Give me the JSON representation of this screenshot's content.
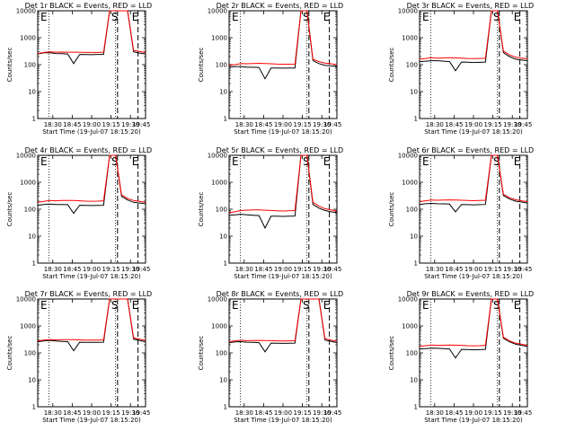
{
  "chart_data": [
    {
      "type": "line",
      "title": "Det 1r BLACK = Events, RED = LLD",
      "xlabel": "Start Time (19-Jul-07 18:15:20)",
      "ylabel": "Counts/sec",
      "x_tick_labels": [
        "18:30",
        "18:45",
        "19:00",
        "19:15",
        "19:30",
        "19:45"
      ],
      "y_tick_labels": [
        "1",
        "10",
        "100",
        "1000",
        "10000"
      ],
      "ylim": [
        1,
        10000
      ],
      "yscale": "log",
      "markers": [
        {
          "label": "E",
          "position": "left-edge"
        },
        {
          "label": "S",
          "position": "first-dashed-line"
        },
        {
          "label": "E",
          "position": "second-dashed-line"
        }
      ],
      "series": [
        {
          "name": "Events",
          "color": "#000000",
          "values": [
            250,
            275,
            280,
            260,
            255,
            250,
            110,
            240,
            238,
            235,
            240,
            240,
            10000,
            10000,
            10000,
            10000,
            300,
            270,
            250
          ]
        },
        {
          "name": "LLD",
          "color": "#ff0000",
          "values": [
            260,
            285,
            300,
            290,
            292,
            290,
            290,
            290,
            285,
            283,
            285,
            290,
            12000,
            12000,
            12000,
            12000,
            340,
            310,
            280
          ]
        }
      ],
      "levels": {
        "pre": 250,
        "post": 270
      }
    },
    {
      "type": "line",
      "title": "Det 2r BLACK = Events, RED = LLD",
      "xlabel": "Start Time (19-Jul-07 18:15:20)",
      "ylabel": "Counts/sec",
      "x_tick_labels": [
        "18:30",
        "18:45",
        "19:00",
        "19:15",
        "19:30",
        "19:45"
      ],
      "y_tick_labels": [
        "1",
        "10",
        "100",
        "1000",
        "10000"
      ],
      "ylim": [
        1,
        10000
      ],
      "yscale": "log",
      "markers": [
        {
          "label": "E",
          "position": "left-edge"
        },
        {
          "label": "S",
          "position": "first-dashed-line"
        },
        {
          "label": "E",
          "position": "second-dashed-line"
        }
      ],
      "series": [
        {
          "name": "Events",
          "color": "#000000",
          "values": [
            80,
            85,
            85,
            80,
            80,
            78,
            30,
            75,
            75,
            74,
            75,
            75,
            10000,
            10000,
            140,
            110,
            95,
            90,
            85
          ]
        },
        {
          "name": "LLD",
          "color": "#ff0000",
          "values": [
            95,
            100,
            110,
            108,
            110,
            112,
            110,
            108,
            105,
            103,
            104,
            105,
            12000,
            12000,
            160,
            130,
            115,
            108,
            100
          ]
        }
      ]
    },
    {
      "type": "line",
      "title": "Det 3r BLACK = Events, RED = LLD",
      "xlabel": "Start Time (19-Jul-07 18:15:20)",
      "ylabel": "Counts/sec",
      "x_tick_labels": [
        "18:30",
        "18:45",
        "19:00",
        "19:15",
        "19:30",
        "19:45"
      ],
      "y_tick_labels": [
        "1",
        "10",
        "100",
        "1000",
        "10000"
      ],
      "ylim": [
        1,
        10000
      ],
      "yscale": "log",
      "markers": [
        {
          "label": "E",
          "position": "left-edge"
        },
        {
          "label": "S",
          "position": "first-dashed-line"
        },
        {
          "label": "E",
          "position": "second-dashed-line"
        }
      ],
      "series": [
        {
          "name": "Events",
          "color": "#000000",
          "values": [
            130,
            135,
            140,
            140,
            135,
            130,
            60,
            125,
            123,
            120,
            122,
            125,
            10000,
            10000,
            280,
            200,
            160,
            150,
            140
          ]
        },
        {
          "name": "LLD",
          "color": "#ff0000",
          "values": [
            160,
            170,
            180,
            175,
            178,
            180,
            178,
            175,
            170,
            168,
            170,
            172,
            12000,
            12000,
            320,
            230,
            190,
            175,
            165
          ]
        }
      ]
    },
    {
      "type": "line",
      "title": "Det 4r BLACK = Events, RED = LLD",
      "xlabel": "Start Time (19-Jul-07 18:15:20)",
      "ylabel": "Counts/sec",
      "x_tick_labels": [
        "18:30",
        "18:45",
        "19:00",
        "19:15",
        "19:30",
        "19:45"
      ],
      "y_tick_labels": [
        "1",
        "10",
        "100",
        "1000",
        "10000"
      ],
      "ylim": [
        1,
        10000
      ],
      "yscale": "log",
      "markers": [
        {
          "label": "E",
          "position": "left-edge"
        },
        {
          "label": "S",
          "position": "first-dashed-line"
        },
        {
          "label": "E",
          "position": "second-dashed-line"
        }
      ],
      "series": [
        {
          "name": "Events",
          "color": "#000000",
          "values": [
            140,
            150,
            155,
            150,
            150,
            148,
            70,
            140,
            138,
            137,
            138,
            140,
            10000,
            10000,
            300,
            220,
            180,
            170,
            160
          ]
        },
        {
          "name": "LLD",
          "color": "#ff0000",
          "values": [
            180,
            195,
            210,
            205,
            210,
            212,
            210,
            205,
            200,
            198,
            200,
            205,
            12000,
            12000,
            340,
            250,
            210,
            195,
            180
          ]
        }
      ]
    },
    {
      "type": "line",
      "title": "Det 5r BLACK = Events, RED = LLD",
      "xlabel": "Start Time (19-Jul-07 18:15:20)",
      "ylabel": "Counts/sec",
      "x_tick_labels": [
        "18:30",
        "18:45",
        "19:00",
        "19:15",
        "19:30",
        "19:45"
      ],
      "y_tick_labels": [
        "1",
        "10",
        "100",
        "1000",
        "10000"
      ],
      "ylim": [
        1,
        10000
      ],
      "yscale": "log",
      "markers": [
        {
          "label": "E",
          "position": "left-edge"
        },
        {
          "label": "S",
          "position": "first-dashed-line"
        },
        {
          "label": "E",
          "position": "second-dashed-line"
        }
      ],
      "series": [
        {
          "name": "Events",
          "color": "#000000",
          "values": [
            60,
            62,
            65,
            62,
            60,
            58,
            20,
            55,
            55,
            54,
            55,
            56,
            10000,
            10000,
            150,
            110,
            90,
            80,
            75
          ]
        },
        {
          "name": "LLD",
          "color": "#ff0000",
          "values": [
            75,
            80,
            90,
            92,
            95,
            95,
            92,
            90,
            88,
            86,
            88,
            90,
            12000,
            12000,
            180,
            130,
            105,
            95,
            85
          ]
        }
      ]
    },
    {
      "type": "line",
      "title": "Det 6r BLACK = Events, RED = LLD",
      "xlabel": "Start Time (19-Jul-07 18:15:20)",
      "ylabel": "Counts/sec",
      "x_tick_labels": [
        "18:30",
        "18:45",
        "19:00",
        "19:15",
        "19:30",
        "19:45"
      ],
      "y_tick_labels": [
        "1",
        "10",
        "100",
        "1000",
        "10000"
      ],
      "ylim": [
        1,
        10000
      ],
      "yscale": "log",
      "markers": [
        {
          "label": "E",
          "position": "left-edge"
        },
        {
          "label": "S",
          "position": "first-dashed-line"
        },
        {
          "label": "E",
          "position": "second-dashed-line"
        }
      ],
      "series": [
        {
          "name": "Events",
          "color": "#000000",
          "values": [
            150,
            160,
            165,
            160,
            158,
            155,
            80,
            150,
            148,
            146,
            148,
            150,
            10000,
            10000,
            320,
            240,
            200,
            185,
            170
          ]
        },
        {
          "name": "LLD",
          "color": "#ff0000",
          "values": [
            190,
            205,
            220,
            215,
            220,
            222,
            220,
            215,
            210,
            208,
            210,
            215,
            12000,
            12000,
            360,
            270,
            225,
            205,
            190
          ]
        }
      ]
    },
    {
      "type": "line",
      "title": "Det 7r BLACK = Events, RED = LLD",
      "xlabel": "Start Time (19-Jul-07 18:15:20)",
      "ylabel": "Counts/sec",
      "x_tick_labels": [
        "18:30",
        "18:45",
        "19:00",
        "19:15",
        "19:30",
        "19:45"
      ],
      "y_tick_labels": [
        "1",
        "10",
        "100",
        "1000",
        "10000"
      ],
      "ylim": [
        1,
        10000
      ],
      "yscale": "log",
      "markers": [
        {
          "label": "E",
          "position": "left-edge"
        },
        {
          "label": "S",
          "position": "first-dashed-line"
        },
        {
          "label": "E",
          "position": "second-dashed-line"
        }
      ],
      "series": [
        {
          "name": "Events",
          "color": "#000000",
          "values": [
            260,
            280,
            290,
            275,
            268,
            262,
            120,
            250,
            248,
            245,
            248,
            250,
            10000,
            10000,
            10000,
            10000,
            320,
            290,
            260
          ]
        },
        {
          "name": "LLD",
          "color": "#ff0000",
          "values": [
            280,
            300,
            315,
            305,
            308,
            310,
            308,
            305,
            300,
            298,
            300,
            305,
            12000,
            12000,
            12000,
            12000,
            360,
            320,
            290
          ]
        }
      ]
    },
    {
      "type": "line",
      "title": "Det 8r BLACK = Events, RED = LLD",
      "xlabel": "Start Time (19-Jul-07 18:15:20)",
      "ylabel": "Counts/sec",
      "x_tick_labels": [
        "18:30",
        "18:45",
        "19:00",
        "19:15",
        "19:30",
        "19:45"
      ],
      "y_tick_labels": [
        "1",
        "10",
        "100",
        "1000",
        "10000"
      ],
      "ylim": [
        1,
        10000
      ],
      "yscale": "log",
      "markers": [
        {
          "label": "E",
          "position": "left-edge"
        },
        {
          "label": "S",
          "position": "first-dashed-line"
        },
        {
          "label": "E",
          "position": "second-dashed-line"
        }
      ],
      "series": [
        {
          "name": "Events",
          "color": "#000000",
          "values": [
            240,
            255,
            262,
            250,
            245,
            240,
            110,
            230,
            228,
            225,
            228,
            230,
            10000,
            10000,
            10000,
            10000,
            300,
            270,
            240
          ]
        },
        {
          "name": "LLD",
          "color": "#ff0000",
          "values": [
            260,
            280,
            295,
            285,
            288,
            290,
            288,
            285,
            280,
            278,
            280,
            285,
            12000,
            12000,
            12000,
            12000,
            340,
            300,
            270
          ]
        }
      ]
    },
    {
      "type": "line",
      "title": "Det 9r BLACK = Events, RED = LLD",
      "xlabel": "Start Time (19-Jul-07 18:15:20)",
      "ylabel": "Counts/sec",
      "x_tick_labels": [
        "18:30",
        "18:45",
        "19:00",
        "19:15",
        "19:30",
        "19:45"
      ],
      "y_tick_labels": [
        "1",
        "10",
        "100",
        "1000",
        "10000"
      ],
      "ylim": [
        1,
        10000
      ],
      "yscale": "log",
      "markers": [
        {
          "label": "E",
          "position": "left-edge"
        },
        {
          "label": "S",
          "position": "first-dashed-line"
        },
        {
          "label": "E",
          "position": "second-dashed-line"
        }
      ],
      "series": [
        {
          "name": "Events",
          "color": "#000000",
          "values": [
            140,
            145,
            150,
            148,
            145,
            140,
            65,
            135,
            133,
            130,
            132,
            135,
            10000,
            10000,
            350,
            260,
            210,
            190,
            175
          ]
        },
        {
          "name": "LLD",
          "color": "#ff0000",
          "values": [
            175,
            185,
            195,
            190,
            192,
            195,
            192,
            190,
            185,
            183,
            185,
            190,
            12000,
            12000,
            380,
            280,
            230,
            210,
            190
          ]
        }
      ]
    }
  ]
}
